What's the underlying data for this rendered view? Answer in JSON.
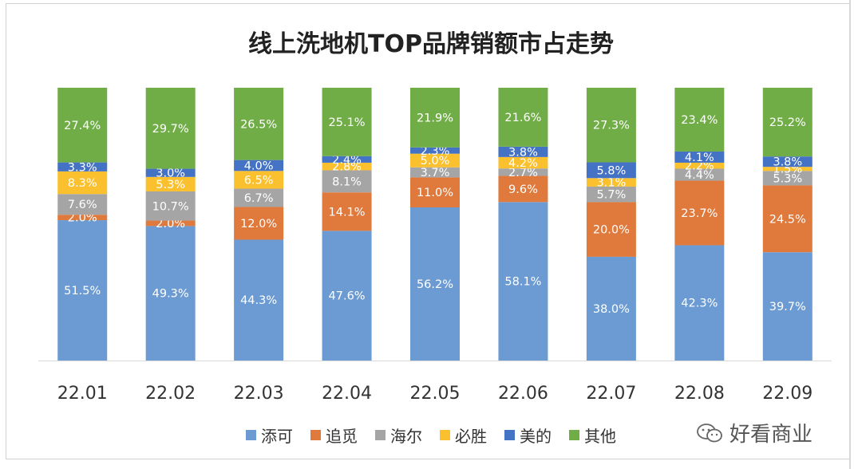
{
  "watermark": {
    "text": "好看商业",
    "icon": "wechat-icon"
  },
  "chart_data": {
    "type": "bar",
    "stacked": true,
    "percent_stacked": true,
    "title": "线上洗地机TOP品牌销额市占走势",
    "categories": [
      "22.01",
      "22.02",
      "22.03",
      "22.04",
      "22.05",
      "22.06",
      "22.07",
      "22.08",
      "22.09"
    ],
    "ylim": [
      0,
      100
    ],
    "grid": false,
    "legend_position": "bottom",
    "series": [
      {
        "name": "添可",
        "color": "#6b9bd2",
        "values": [
          51.5,
          49.3,
          44.3,
          47.6,
          56.2,
          58.1,
          38.0,
          42.3,
          39.7
        ],
        "labels": [
          "51.5%",
          "49.3%",
          "44.3%",
          "47.6%",
          "56.2%",
          "58.1%",
          "38.0%",
          "42.3%",
          "39.7%"
        ]
      },
      {
        "name": "追觅",
        "color": "#e0793c",
        "values": [
          2.0,
          2.0,
          12.0,
          14.1,
          11.0,
          9.6,
          20.0,
          23.7,
          24.5
        ],
        "labels": [
          "2.0%",
          "2.0%",
          "12.0%",
          "14.1%",
          "11.0%",
          "9.6%",
          "20.0%",
          "23.7%",
          "24.5%"
        ]
      },
      {
        "name": "海尔",
        "color": "#a5a5a5",
        "values": [
          7.6,
          10.7,
          6.7,
          8.1,
          3.7,
          2.7,
          5.7,
          4.4,
          5.3
        ],
        "labels": [
          "7.6%",
          "10.7%",
          "6.7%",
          "8.1%",
          "3.7%",
          "2.7%",
          "5.7%",
          "4.4%",
          "5.3%"
        ]
      },
      {
        "name": "必胜",
        "color": "#fbc02d",
        "values": [
          8.3,
          5.3,
          6.5,
          2.8,
          5.0,
          4.2,
          3.1,
          2.2,
          1.5
        ],
        "labels": [
          "8.3%",
          "5.3%",
          "6.5%",
          "2.8%",
          "5.0%",
          "4.2%",
          "3.1%",
          "2.2%",
          "1.5%"
        ]
      },
      {
        "name": "美的",
        "color": "#4472c4",
        "values": [
          3.3,
          3.0,
          4.0,
          2.4,
          2.3,
          3.8,
          5.8,
          4.1,
          3.8
        ],
        "labels": [
          "3.3%",
          "3.0%",
          "4.0%",
          "2.4%",
          "2.3%",
          "3.8%",
          "5.8%",
          "4.1%",
          "3.8%"
        ]
      },
      {
        "name": "其他",
        "color": "#70ad47",
        "values": [
          27.4,
          29.7,
          26.5,
          25.1,
          21.9,
          21.6,
          27.3,
          23.4,
          25.2
        ],
        "labels": [
          "27.4%",
          "29.7%",
          "26.5%",
          "25.1%",
          "21.9%",
          "21.6%",
          "27.3%",
          "23.4%",
          "25.2%"
        ]
      }
    ]
  }
}
